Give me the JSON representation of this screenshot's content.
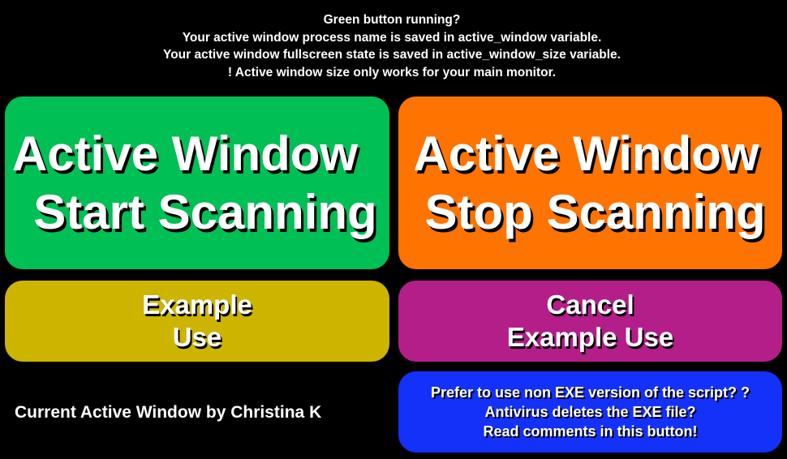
{
  "info": {
    "lines": [
      "Green button running?",
      "Your active window process name is saved in active_window variable.",
      "Your active window fullscreen state is saved in active_window_size variable.",
      "! Active window size only works for your main monitor."
    ]
  },
  "buttons": {
    "start": {
      "line1": "Active Window",
      "line2": "Start Scanning",
      "color": "#00bf55"
    },
    "stop": {
      "line1": "Active Window",
      "line2": "Stop Scanning",
      "color": "#ff7300"
    },
    "example": {
      "line1": "Example",
      "line2": "Use",
      "color": "#cdb400"
    },
    "cancel": {
      "line1": "Cancel",
      "line2": "Example Use",
      "color": "#b31e89"
    },
    "non_exe": {
      "line1": "Prefer to use non EXE version of the script? ?",
      "line2": "Antivirus deletes the EXE file?",
      "line3": "Read comments in this button!",
      "color": "#1431fa"
    }
  },
  "credit": "Current Active Window by Christina K"
}
